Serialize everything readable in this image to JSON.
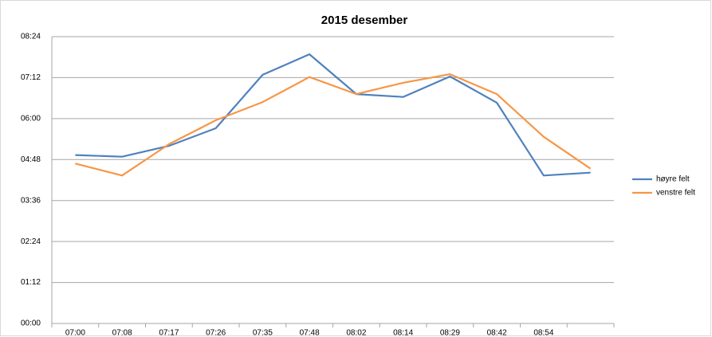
{
  "chart_data": {
    "type": "line",
    "title": "2015 desember",
    "categories": [
      "07:00",
      "07:08",
      "07:17",
      "07:26",
      "07:35",
      "07:48",
      "08:02",
      "08:14",
      "08:29",
      "08:42",
      "08:54",
      null
    ],
    "series": [
      {
        "name": "høyre felt",
        "color": "#4f81bd",
        "values": [
          296,
          293,
          312,
          343,
          437,
          473,
          403,
          398,
          434,
          388,
          260,
          265
        ]
      },
      {
        "name": "venstre felt",
        "color": "#f79646",
        "values": [
          281,
          260,
          315,
          357,
          389,
          433,
          403,
          423,
          438,
          403,
          328,
          272
        ]
      }
    ],
    "ylim": [
      0,
      504
    ],
    "yticks": [
      {
        "value": 0,
        "label": "00:00"
      },
      {
        "value": 72,
        "label": "01:12"
      },
      {
        "value": 144,
        "label": "02:24"
      },
      {
        "value": 216,
        "label": "03:36"
      },
      {
        "value": 288,
        "label": "04:48"
      },
      {
        "value": 360,
        "label": "06:00"
      },
      {
        "value": 432,
        "label": "07:12"
      },
      {
        "value": 504,
        "label": "08:24"
      }
    ],
    "grid": true,
    "legend": "right"
  }
}
